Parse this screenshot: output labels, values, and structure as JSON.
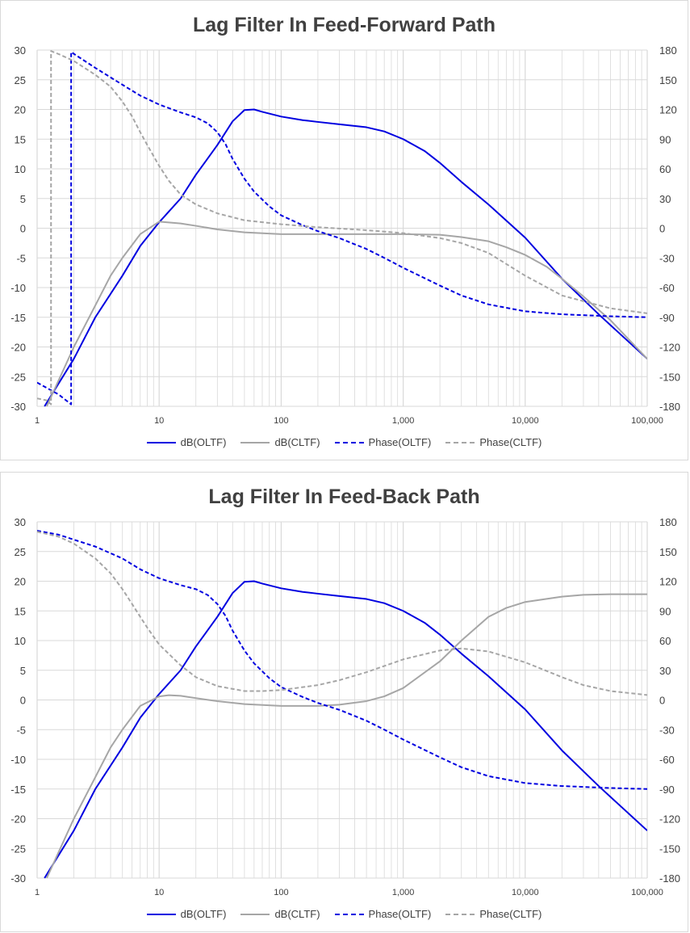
{
  "colors": {
    "oltf": "#0000e0",
    "cltf": "#a6a6a6",
    "grid": "#d9d9d9",
    "text": "#404040"
  },
  "chart_data": [
    {
      "type": "line",
      "title": "Lag Filter In Feed-Forward Path",
      "x_scale": "log",
      "xlim": [
        1,
        100000
      ],
      "x_tick_labels": [
        "1",
        "10",
        "100",
        "1,000",
        "10,000",
        "100,000"
      ],
      "ylim_left": [
        -30,
        30
      ],
      "y_left_ticks": [
        30,
        25,
        20,
        15,
        10,
        5,
        0,
        -5,
        -10,
        -15,
        -20,
        -25,
        -30
      ],
      "ylim_right": [
        -180,
        180
      ],
      "y_right_ticks": [
        180,
        150,
        120,
        90,
        60,
        30,
        0,
        -30,
        -60,
        -90,
        -120,
        -150,
        -180
      ],
      "grid": true,
      "legend_position": "bottom",
      "series": [
        {
          "name": "dB(OLTF)",
          "axis": "left",
          "color": "#0000e0",
          "dash": false,
          "x": [
            1.15,
            2,
            3,
            5,
            7,
            10,
            15,
            20,
            30,
            40,
            50,
            60,
            70,
            100,
            150,
            200,
            300,
            500,
            700,
            1000,
            1500,
            2000,
            3000,
            5000,
            10000,
            20000,
            40000,
            100000
          ],
          "y": [
            -30,
            -22,
            -15,
            -8,
            -3,
            1,
            5,
            9,
            14,
            18,
            19.9,
            20,
            19.6,
            18.8,
            18.2,
            17.9,
            17.5,
            17,
            16.3,
            15,
            13,
            11,
            7.8,
            4,
            -1.6,
            -8.5,
            -14.5,
            -22
          ]
        },
        {
          "name": "dB(CLTF)",
          "axis": "left",
          "color": "#a6a6a6",
          "dash": false,
          "x": [
            1.2,
            2,
            3,
            4,
            5,
            7,
            10,
            15,
            20,
            30,
            50,
            100,
            200,
            500,
            1000,
            2000,
            3000,
            5000,
            7000,
            10000,
            15000,
            20000,
            30000,
            50000,
            100000
          ],
          "y": [
            -30,
            -20,
            -13,
            -8,
            -5,
            -1,
            1.1,
            0.8,
            0.4,
            -0.2,
            -0.7,
            -1,
            -1,
            -1,
            -1,
            -1.1,
            -1.5,
            -2.2,
            -3.2,
            -4.5,
            -6.5,
            -8.5,
            -11.5,
            -15.5,
            -22
          ]
        },
        {
          "name": "Phase(OLTF)",
          "axis": "right",
          "color": "#0000e0",
          "dash": true,
          "x": [
            1,
            1.5,
            1.9,
            1.9,
            3,
            5,
            7,
            10,
            15,
            20,
            25,
            30,
            35,
            40,
            50,
            60,
            80,
            100,
            150,
            200,
            300,
            500,
            700,
            1000,
            2000,
            3000,
            5000,
            10000,
            20000,
            50000,
            100000
          ],
          "y": [
            -156,
            -168,
            -178,
            178,
            162,
            145,
            134,
            125,
            117,
            112,
            106,
            97,
            85,
            70,
            50,
            37,
            22,
            13,
            3,
            -3,
            -10,
            -21,
            -30,
            -40,
            -58,
            -68,
            -77,
            -84,
            -87,
            -89,
            -90
          ]
        },
        {
          "name": "Phase(CLTF)",
          "axis": "right",
          "color": "#a6a6a6",
          "dash": true,
          "x": [
            1,
            1.2,
            1.3,
            1.3,
            1.5,
            2,
            3,
            4,
            5,
            6,
            7,
            8,
            10,
            12,
            15,
            20,
            30,
            50,
            100,
            200,
            500,
            1000,
            2000,
            3000,
            5000,
            10000,
            20000,
            50000,
            100000
          ],
          "y": [
            -172,
            -174,
            -178,
            179,
            176,
            169,
            155,
            143,
            128,
            113,
            97,
            84,
            63,
            48,
            34,
            24,
            15,
            8,
            4,
            1,
            -2,
            -5,
            -10,
            -15,
            -25,
            -48,
            -68,
            -81,
            -86
          ]
        }
      ]
    },
    {
      "type": "line",
      "title": "Lag Filter In Feed-Back Path",
      "x_scale": "log",
      "xlim": [
        1,
        100000
      ],
      "x_tick_labels": [
        "1",
        "10",
        "100",
        "1,000",
        "10,000",
        "100,000"
      ],
      "ylim_left": [
        -30,
        30
      ],
      "y_left_ticks": [
        30,
        25,
        20,
        15,
        10,
        5,
        0,
        -5,
        -10,
        -15,
        -20,
        -25,
        -30
      ],
      "ylim_right": [
        -180,
        180
      ],
      "y_right_ticks": [
        180,
        150,
        120,
        90,
        60,
        30,
        0,
        -30,
        -60,
        -90,
        -120,
        -150,
        -180
      ],
      "grid": true,
      "legend_position": "bottom",
      "series": [
        {
          "name": "dB(OLTF)",
          "axis": "left",
          "color": "#0000e0",
          "dash": false,
          "x": [
            1.15,
            2,
            3,
            5,
            7,
            10,
            15,
            20,
            30,
            40,
            50,
            60,
            70,
            100,
            150,
            200,
            300,
            500,
            700,
            1000,
            1500,
            2000,
            3000,
            5000,
            10000,
            20000,
            40000,
            100000
          ],
          "y": [
            -30,
            -22,
            -15,
            -8,
            -3,
            1,
            5,
            9,
            14,
            18,
            19.9,
            20,
            19.6,
            18.8,
            18.2,
            17.9,
            17.5,
            17,
            16.3,
            15,
            13,
            11,
            7.8,
            4,
            -1.6,
            -8.5,
            -14.5,
            -22
          ]
        },
        {
          "name": "dB(CLTF)",
          "axis": "left",
          "color": "#a6a6a6",
          "dash": false,
          "x": [
            1.2,
            2,
            3,
            4,
            5,
            7,
            10,
            12,
            15,
            20,
            30,
            50,
            100,
            200,
            300,
            500,
            700,
            1000,
            2000,
            3000,
            5000,
            7000,
            10000,
            20000,
            30000,
            50000,
            100000
          ],
          "y": [
            -30,
            -20,
            -13,
            -8,
            -5,
            -1,
            0.6,
            0.8,
            0.7,
            0.3,
            -0.2,
            -0.7,
            -1,
            -1,
            -0.8,
            -0.2,
            0.6,
            2,
            6.5,
            10,
            14,
            15.5,
            16.5,
            17.4,
            17.7,
            17.8,
            17.8
          ]
        },
        {
          "name": "Phase(OLTF)",
          "axis": "right",
          "color": "#0000e0",
          "dash": true,
          "x": [
            1,
            1.5,
            2,
            3,
            5,
            7,
            10,
            15,
            20,
            25,
            30,
            35,
            40,
            50,
            60,
            80,
            100,
            150,
            200,
            300,
            500,
            700,
            1000,
            2000,
            3000,
            5000,
            10000,
            20000,
            50000,
            100000
          ],
          "y": [
            171,
            167,
            162,
            155,
            143,
            132,
            123,
            116,
            112,
            106,
            97,
            85,
            70,
            50,
            37,
            22,
            13,
            3,
            -3,
            -10,
            -21,
            -30,
            -40,
            -58,
            -68,
            -77,
            -84,
            -87,
            -89,
            -90
          ]
        },
        {
          "name": "Phase(CLTF)",
          "axis": "right",
          "color": "#a6a6a6",
          "dash": true,
          "x": [
            1,
            1.5,
            2,
            3,
            4,
            5,
            6,
            7,
            8,
            10,
            15,
            20,
            30,
            50,
            70,
            100,
            200,
            300,
            500,
            1000,
            2000,
            3000,
            5000,
            10000,
            20000,
            30000,
            50000,
            100000
          ],
          "y": [
            170,
            165,
            158,
            143,
            128,
            112,
            97,
            84,
            73,
            56,
            35,
            23,
            14,
            9,
            9,
            10,
            15,
            20,
            28,
            41,
            50,
            52,
            49,
            38,
            23,
            15,
            9,
            5
          ]
        }
      ]
    }
  ]
}
